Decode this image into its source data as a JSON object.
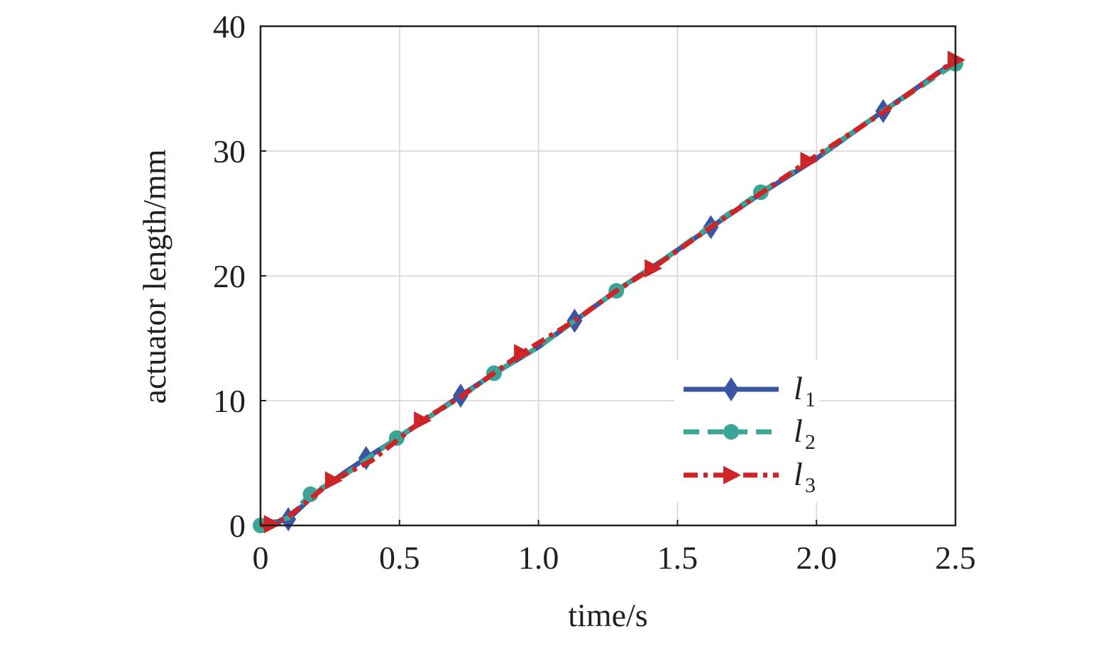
{
  "chart_data": {
    "type": "line",
    "xlabel": "time/s",
    "ylabel": "actuator length/mm",
    "xlim": [
      0,
      2.5
    ],
    "ylim": [
      0,
      40
    ],
    "xticks": [
      "0",
      "0.5",
      "1.0",
      "1.5",
      "2.0",
      "2.5"
    ],
    "yticks": [
      "0",
      "10",
      "20",
      "30",
      "40"
    ],
    "grid": true,
    "legend_position": "lower-right",
    "series": [
      {
        "name": "l",
        "subscript": "1",
        "color": "#3a55a4",
        "line_style": "solid",
        "marker": "diamond",
        "x": [
          0,
          0.1,
          0.2,
          0.3,
          0.38,
          0.5,
          0.6,
          0.72,
          0.85,
          1.0,
          1.13,
          1.3,
          1.45,
          1.62,
          1.8,
          2.0,
          2.24,
          2.5
        ],
        "y": [
          0,
          0.5,
          2.6,
          4.2,
          5.4,
          7.1,
          8.6,
          10.4,
          12.3,
          14.3,
          16.4,
          19.1,
          21.3,
          23.9,
          26.6,
          29.4,
          33.2,
          37.2
        ],
        "markers_x": [
          0.1,
          0.38,
          0.72,
          1.13,
          1.62,
          2.24
        ],
        "markers_y": [
          0.5,
          5.4,
          10.4,
          16.4,
          23.9,
          33.2
        ]
      },
      {
        "name": "l",
        "subscript": "2",
        "color": "#3aa596",
        "line_style": "dashed",
        "marker": "circle",
        "x": [
          0,
          0.1,
          0.18,
          0.3,
          0.49,
          0.6,
          0.72,
          0.84,
          1.0,
          1.13,
          1.28,
          1.45,
          1.62,
          1.8,
          2.0,
          2.24,
          2.5
        ],
        "y": [
          0,
          0.6,
          2.5,
          4.0,
          7.0,
          8.6,
          10.3,
          12.2,
          14.3,
          16.4,
          18.8,
          21.3,
          24.0,
          26.7,
          29.5,
          33.2,
          37.0
        ],
        "markers_x": [
          0,
          0.18,
          0.49,
          0.84,
          1.28,
          1.8,
          2.5
        ],
        "markers_y": [
          0,
          2.5,
          7.0,
          12.2,
          18.8,
          26.7,
          37.0
        ]
      },
      {
        "name": "l",
        "subscript": "3",
        "color": "#cd2427",
        "line_style": "dashdot",
        "marker": "triangle-right",
        "x": [
          0,
          0.04,
          0.1,
          0.26,
          0.4,
          0.58,
          0.72,
          0.94,
          1.13,
          1.28,
          1.41,
          1.62,
          1.8,
          1.97,
          2.24,
          2.5
        ],
        "y": [
          0,
          0.1,
          0.7,
          3.6,
          5.2,
          8.4,
          10.3,
          13.8,
          16.4,
          18.8,
          20.6,
          23.9,
          26.6,
          29.2,
          33.1,
          37.3
        ],
        "markers_x": [
          0.04,
          0.26,
          0.58,
          0.94,
          1.41,
          1.97,
          2.5
        ],
        "markers_y": [
          0.1,
          3.6,
          8.4,
          13.8,
          20.6,
          29.2,
          37.3
        ]
      }
    ]
  }
}
